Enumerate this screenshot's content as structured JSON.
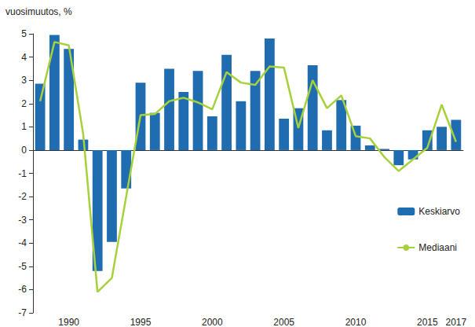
{
  "chart_data": {
    "type": "bar",
    "y_label": "vuosimuutos, %",
    "categories": [
      null,
      null,
      "1990",
      null,
      null,
      null,
      null,
      "1995",
      null,
      null,
      null,
      null,
      "2000",
      null,
      null,
      null,
      null,
      "2005",
      null,
      null,
      null,
      null,
      "2010",
      null,
      null,
      null,
      null,
      "2015",
      null,
      "2017"
    ],
    "series": [
      {
        "name": "Keskiarvo",
        "type": "bar",
        "color": "#1f6db0",
        "values": [
          2.85,
          4.95,
          4.35,
          0.45,
          -5.2,
          -3.95,
          -1.65,
          2.9,
          1.6,
          3.5,
          2.5,
          3.4,
          1.45,
          4.1,
          2.1,
          3.4,
          4.8,
          1.35,
          1.8,
          3.65,
          0.85,
          2.15,
          1.05,
          0.2,
          0.05,
          -0.65,
          -0.4,
          0.85,
          1.0,
          1.3
        ]
      },
      {
        "name": "Mediaani",
        "type": "line",
        "color": "#a6d13a",
        "values": [
          2.1,
          4.65,
          4.5,
          0.7,
          -6.1,
          -5.5,
          -2.0,
          1.5,
          1.55,
          2.1,
          2.25,
          2.05,
          1.75,
          3.35,
          2.9,
          2.8,
          3.6,
          3.55,
          0.95,
          3.0,
          1.8,
          2.35,
          0.6,
          0.5,
          -0.3,
          -0.9,
          -0.4,
          0.1,
          1.95,
          0.35
        ]
      }
    ],
    "ylim": [
      -7,
      5
    ],
    "yticks": [
      -7,
      -6,
      -5,
      -4,
      -3,
      -2,
      -1,
      0,
      1,
      2,
      3,
      4,
      5
    ],
    "grid": false,
    "legend": "right"
  }
}
